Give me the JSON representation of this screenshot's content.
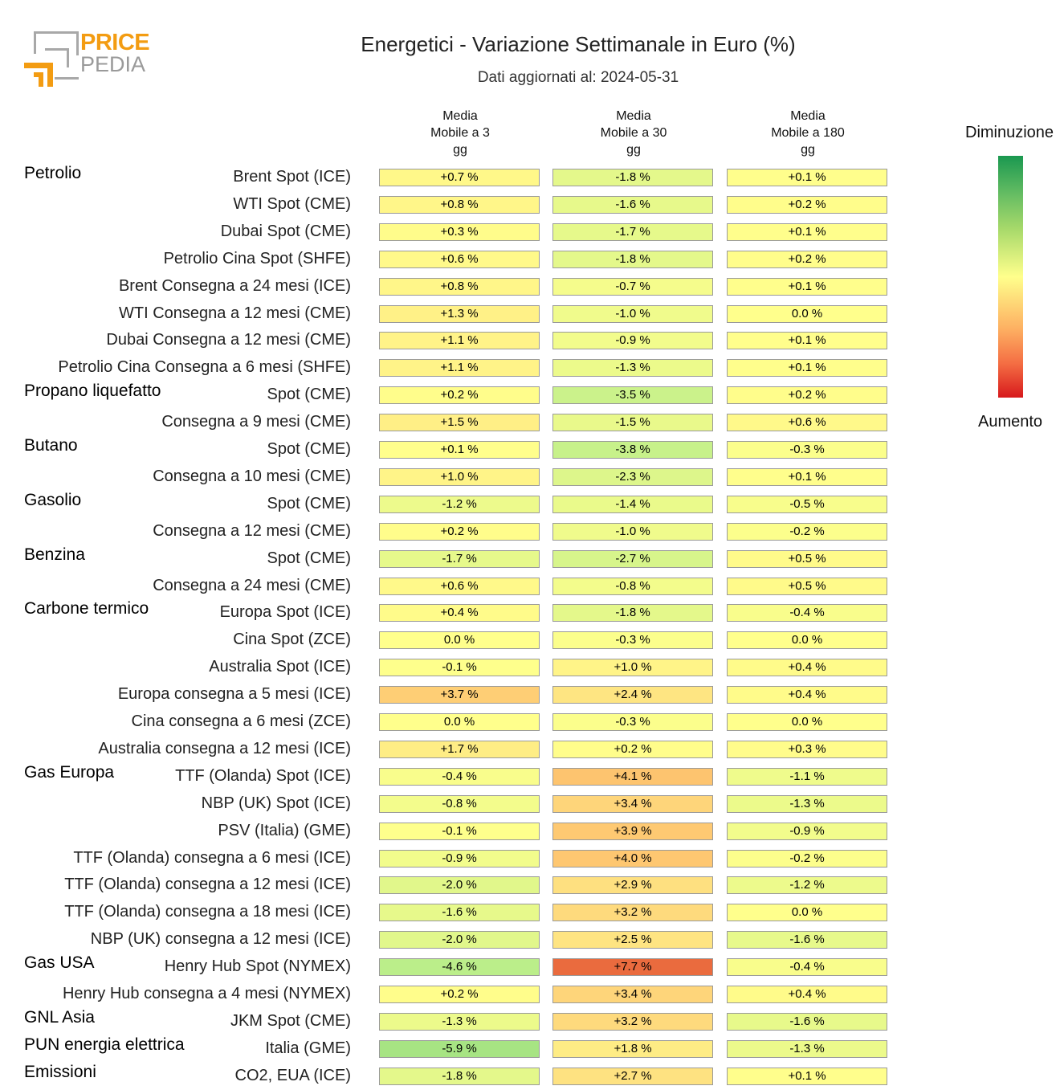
{
  "logo": {
    "text_top": "PRICE",
    "text_bottom": "PEDIA",
    "colors": {
      "orange": "#f39c12",
      "gray": "#a8a8a8"
    }
  },
  "title": "Energetici - Variazione Settimanale in Euro (%)",
  "subtitle": "Dati aggiornati al: 2024-05-31",
  "legend": {
    "top_label": "Diminuzione",
    "bottom_label": "Aumento",
    "color_low": "#1a9850",
    "color_mid": "#ffff8c",
    "color_high": "#d7191c"
  },
  "chart_data": {
    "type": "heatmap",
    "title": "Energetici - Variazione Settimanale in Euro (%)",
    "columns": [
      "Media\nMobile a 3\ngg",
      "Media\nMobile a 30\ngg",
      "Media\nMobile a 180\ngg"
    ],
    "unit": "%",
    "color_range": [
      -15,
      15
    ],
    "rows": [
      {
        "group": "Petrolio",
        "label": "Brent Spot (ICE)",
        "values": [
          0.7,
          -1.8,
          0.1
        ],
        "display": [
          "+0.7 %",
          "-1.8 %",
          "+0.1 %"
        ]
      },
      {
        "group": "",
        "label": "WTI Spot (CME)",
        "values": [
          0.8,
          -1.6,
          0.2
        ],
        "display": [
          "+0.8 %",
          "-1.6 %",
          "+0.2 %"
        ]
      },
      {
        "group": "",
        "label": "Dubai Spot (CME)",
        "values": [
          0.3,
          -1.7,
          0.1
        ],
        "display": [
          "+0.3 %",
          "-1.7 %",
          "+0.1 %"
        ]
      },
      {
        "group": "",
        "label": "Petrolio Cina Spot (SHFE)",
        "values": [
          0.6,
          -1.8,
          0.2
        ],
        "display": [
          "+0.6 %",
          "-1.8 %",
          "+0.2 %"
        ]
      },
      {
        "group": "",
        "label": "Brent Consegna a 24 mesi (ICE)",
        "values": [
          0.8,
          -0.7,
          0.1
        ],
        "display": [
          "+0.8 %",
          "-0.7 %",
          "+0.1 %"
        ]
      },
      {
        "group": "",
        "label": "WTI Consegna a 12 mesi (CME)",
        "values": [
          1.3,
          -1.0,
          0.0
        ],
        "display": [
          "+1.3 %",
          "-1.0 %",
          "0.0 %"
        ]
      },
      {
        "group": "",
        "label": "Dubai Consegna a 12 mesi (CME)",
        "values": [
          1.1,
          -0.9,
          0.1
        ],
        "display": [
          "+1.1 %",
          "-0.9 %",
          "+0.1 %"
        ]
      },
      {
        "group": "",
        "label": "Petrolio Cina Consegna a 6 mesi (SHFE)",
        "values": [
          1.1,
          -1.3,
          0.1
        ],
        "display": [
          "+1.1 %",
          "-1.3 %",
          "+0.1 %"
        ]
      },
      {
        "group": "Propano liquefatto",
        "label": "Spot (CME)",
        "values": [
          0.2,
          -3.5,
          0.2
        ],
        "display": [
          "+0.2 %",
          "-3.5 %",
          "+0.2 %"
        ]
      },
      {
        "group": "",
        "label": "Consegna a 9 mesi (CME)",
        "values": [
          1.5,
          -1.5,
          0.6
        ],
        "display": [
          "+1.5 %",
          "-1.5 %",
          "+0.6 %"
        ]
      },
      {
        "group": "Butano",
        "label": "Spot (CME)",
        "values": [
          0.1,
          -3.8,
          -0.3
        ],
        "display": [
          "+0.1 %",
          "-3.8 %",
          "-0.3 %"
        ]
      },
      {
        "group": "",
        "label": "Consegna a 10 mesi (CME)",
        "values": [
          1.0,
          -2.3,
          0.1
        ],
        "display": [
          "+1.0 %",
          "-2.3 %",
          "+0.1 %"
        ]
      },
      {
        "group": "Gasolio",
        "label": "Spot (CME)",
        "values": [
          -1.2,
          -1.4,
          -0.5
        ],
        "display": [
          "-1.2 %",
          "-1.4 %",
          "-0.5 %"
        ]
      },
      {
        "group": "",
        "label": "Consegna a 12 mesi (CME)",
        "values": [
          0.2,
          -1.0,
          -0.2
        ],
        "display": [
          "+0.2 %",
          "-1.0 %",
          "-0.2 %"
        ]
      },
      {
        "group": "Benzina",
        "label": "Spot (CME)",
        "values": [
          -1.7,
          -2.7,
          0.5
        ],
        "display": [
          "-1.7 %",
          "-2.7 %",
          "+0.5 %"
        ]
      },
      {
        "group": "",
        "label": "Consegna a 24 mesi (CME)",
        "values": [
          0.6,
          -0.8,
          0.5
        ],
        "display": [
          "+0.6 %",
          "-0.8 %",
          "+0.5 %"
        ]
      },
      {
        "group": "Carbone termico",
        "label": "Europa Spot (ICE)",
        "values": [
          0.4,
          -1.8,
          -0.4
        ],
        "display": [
          "+0.4 %",
          "-1.8 %",
          "-0.4 %"
        ]
      },
      {
        "group": "",
        "label": "Cina Spot (ZCE)",
        "values": [
          0.0,
          -0.3,
          0.0
        ],
        "display": [
          "0.0 %",
          "-0.3 %",
          "0.0 %"
        ]
      },
      {
        "group": "",
        "label": "Australia Spot (ICE)",
        "values": [
          -0.1,
          1.0,
          0.4
        ],
        "display": [
          "-0.1 %",
          "+1.0 %",
          "+0.4 %"
        ]
      },
      {
        "group": "",
        "label": "Europa consegna a 5 mesi (ICE)",
        "values": [
          3.7,
          2.4,
          0.4
        ],
        "display": [
          "+3.7 %",
          "+2.4 %",
          "+0.4 %"
        ]
      },
      {
        "group": "",
        "label": "Cina consegna a 6 mesi (ZCE)",
        "values": [
          0.0,
          -0.3,
          0.0
        ],
        "display": [
          "0.0 %",
          "-0.3 %",
          "0.0 %"
        ]
      },
      {
        "group": "",
        "label": "Australia consegna a 12 mesi (ICE)",
        "values": [
          1.7,
          0.2,
          0.3
        ],
        "display": [
          "+1.7 %",
          "+0.2 %",
          "+0.3 %"
        ]
      },
      {
        "group": "Gas Europa",
        "label": "TTF (Olanda) Spot (ICE)",
        "values": [
          -0.4,
          4.1,
          -1.1
        ],
        "display": [
          "-0.4 %",
          "+4.1 %",
          "-1.1 %"
        ]
      },
      {
        "group": "",
        "label": "NBP (UK) Spot (ICE)",
        "values": [
          -0.8,
          3.4,
          -1.3
        ],
        "display": [
          "-0.8 %",
          "+3.4 %",
          "-1.3 %"
        ]
      },
      {
        "group": "",
        "label": "PSV (Italia) (GME)",
        "values": [
          -0.1,
          3.9,
          -0.9
        ],
        "display": [
          "-0.1 %",
          "+3.9 %",
          "-0.9 %"
        ]
      },
      {
        "group": "",
        "label": "TTF (Olanda) consegna a 6 mesi (ICE)",
        "values": [
          -0.9,
          4.0,
          -0.2
        ],
        "display": [
          "-0.9 %",
          "+4.0 %",
          "-0.2 %"
        ]
      },
      {
        "group": "",
        "label": "TTF (Olanda) consegna a 12 mesi (ICE)",
        "values": [
          -2.0,
          2.9,
          -1.2
        ],
        "display": [
          "-2.0 %",
          "+2.9 %",
          "-1.2 %"
        ]
      },
      {
        "group": "",
        "label": "TTF (Olanda) consegna a 18 mesi (ICE)",
        "values": [
          -1.6,
          3.2,
          0.0
        ],
        "display": [
          "-1.6 %",
          "+3.2 %",
          "0.0 %"
        ]
      },
      {
        "group": "",
        "label": "NBP (UK) consegna a 12 mesi (ICE)",
        "values": [
          -2.0,
          2.5,
          -1.6
        ],
        "display": [
          "-2.0 %",
          "+2.5 %",
          "-1.6 %"
        ]
      },
      {
        "group": "Gas USA",
        "label": "Henry Hub Spot (NYMEX)",
        "values": [
          -4.6,
          7.7,
          -0.4
        ],
        "display": [
          "-4.6 %",
          "+7.7 %",
          "-0.4 %"
        ]
      },
      {
        "group": "",
        "label": "Henry Hub consegna a 4 mesi (NYMEX)",
        "values": [
          0.2,
          3.4,
          0.4
        ],
        "display": [
          "+0.2 %",
          "+3.4 %",
          "+0.4 %"
        ]
      },
      {
        "group": "GNL Asia",
        "label": "JKM Spot (CME)",
        "values": [
          -1.3,
          3.2,
          -1.6
        ],
        "display": [
          "-1.3 %",
          "+3.2 %",
          "-1.6 %"
        ]
      },
      {
        "group": "PUN energia elettrica",
        "label": "Italia (GME)",
        "values": [
          -5.9,
          1.8,
          -1.3
        ],
        "display": [
          "-5.9 %",
          "+1.8 %",
          "-1.3 %"
        ]
      },
      {
        "group": "Emissioni",
        "label": "CO2, EUA (ICE)",
        "values": [
          -1.8,
          2.7,
          0.1
        ],
        "display": [
          "-1.8 %",
          "+2.7 %",
          "+0.1 %"
        ]
      }
    ]
  }
}
